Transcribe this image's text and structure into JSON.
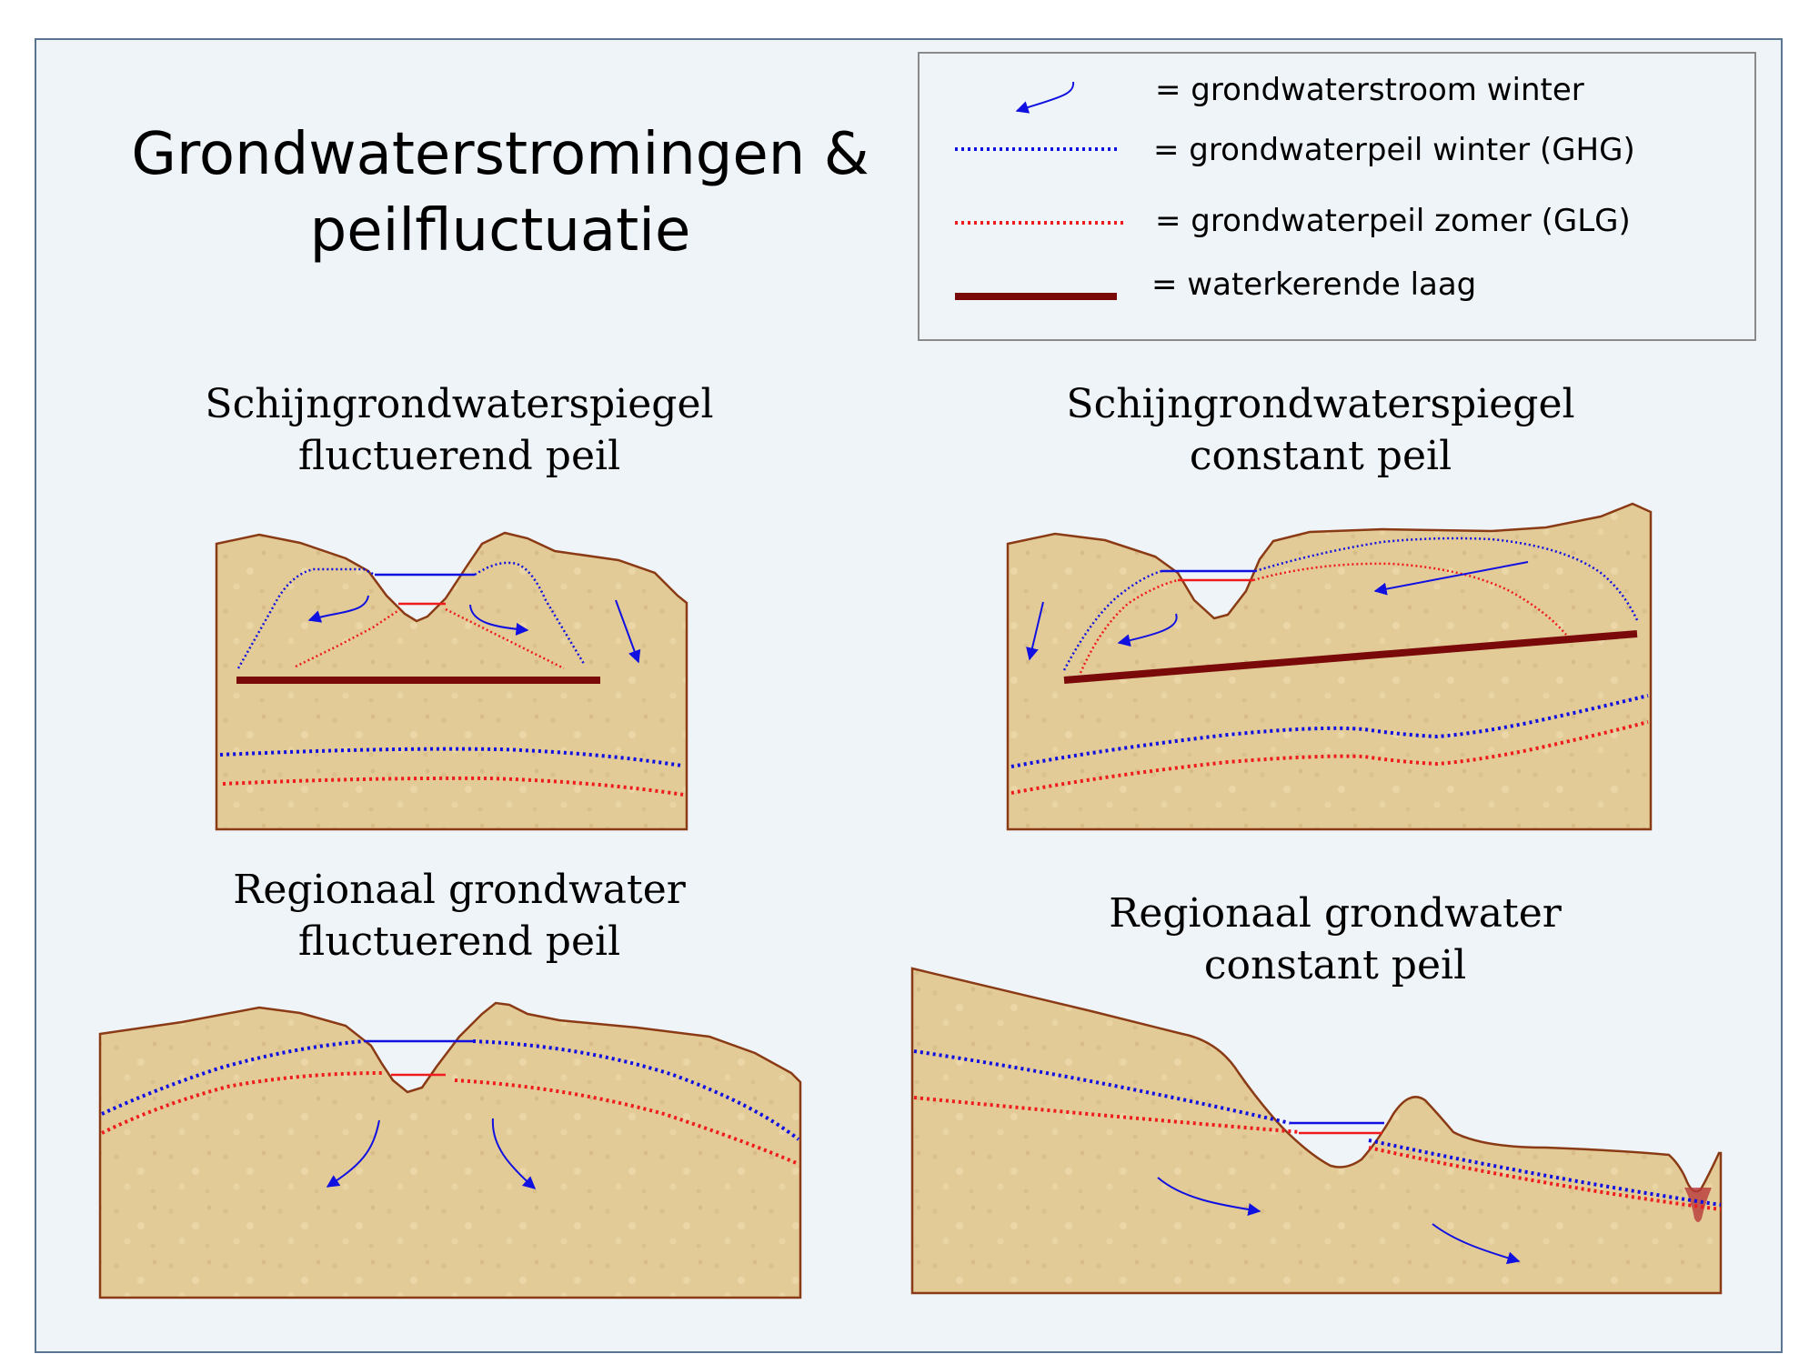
{
  "title": {
    "line1": "Grondwaterstromingen &",
    "line2": "peilfluctuatie"
  },
  "legend": {
    "items": [
      {
        "symbol": "flow-arrow",
        "text": "= grondwaterstroom winter",
        "color": "#1010e0"
      },
      {
        "symbol": "blue-dotted-line",
        "text": "= grondwaterpeil winter (GHG)",
        "color": "#1010e0"
      },
      {
        "symbol": "red-dotted-line",
        "text": "= grondwaterpeil zomer (GLG)",
        "color": "#ee1c1c"
      },
      {
        "symbol": "thick-brown-line",
        "text": "= waterkerende laag",
        "color": "#7a0a0a"
      }
    ]
  },
  "panels": [
    {
      "id": "top-left",
      "title_line1": "Schijngrondwaterspiegel",
      "title_line2": "fluctuerend peil"
    },
    {
      "id": "top-right",
      "title_line1": "Schijngrondwaterspiegel",
      "title_line2": "constant peil"
    },
    {
      "id": "bottom-left",
      "title_line1": "Regionaal grondwater",
      "title_line2": "fluctuerend peil"
    },
    {
      "id": "bottom-right",
      "title_line1": "Regionaal grondwater",
      "title_line2": "constant peil"
    }
  ],
  "colors": {
    "soil": "#e3cb98",
    "soil_outline": "#8a3a14",
    "winter": "#1010e0",
    "summer": "#ee1c1c",
    "impermeable_layer": "#7a0a0a",
    "background": "#eff4f9"
  }
}
